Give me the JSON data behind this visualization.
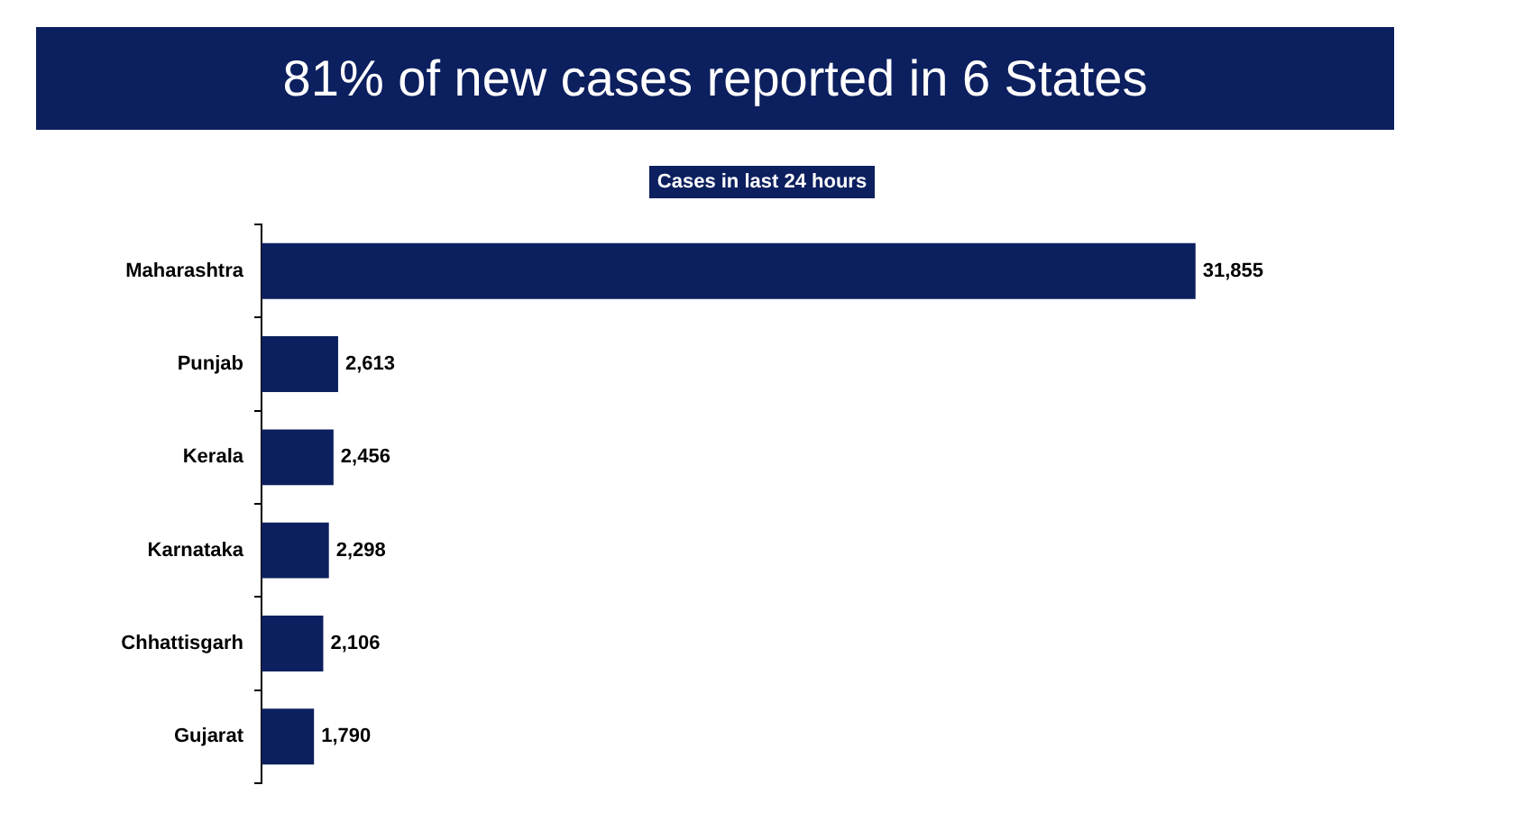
{
  "chart_data": {
    "type": "bar",
    "orientation": "horizontal",
    "title": "81% of new cases reported in 6 States",
    "subtitle": "Cases in last 24 hours",
    "categories": [
      "Maharashtra",
      "Punjab",
      "Kerala",
      "Karnataka",
      "Chhattisgarh",
      "Gujarat"
    ],
    "values": [
      31855,
      2613,
      2456,
      2298,
      2106,
      1790
    ],
    "value_labels": [
      "31,855",
      "2,613",
      "2,456",
      "2,298",
      "2,106",
      "1,790"
    ],
    "color": "#0c1f5e",
    "legend": false
  }
}
